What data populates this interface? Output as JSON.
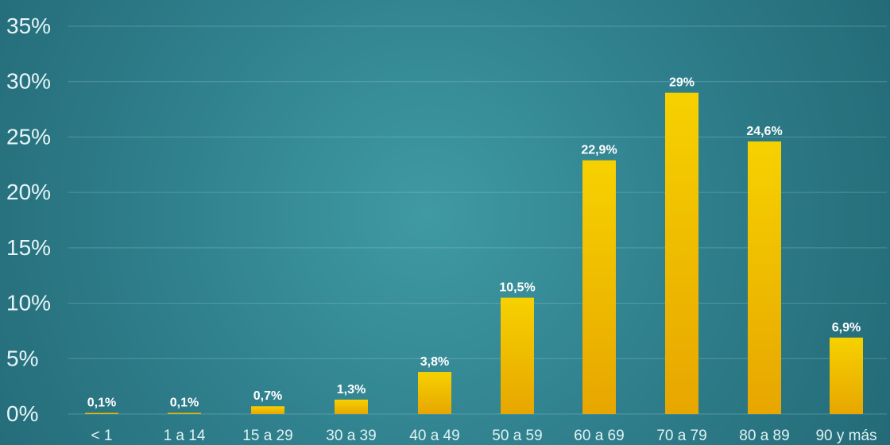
{
  "chart_data": {
    "type": "bar",
    "categories": [
      "< 1",
      "1 a 14",
      "15 a 29",
      "30 a 39",
      "40 a 49",
      "50 a 59",
      "60 a 69",
      "70 a 79",
      "80 a 89",
      "90 y más"
    ],
    "values": [
      0.1,
      0.1,
      0.7,
      1.3,
      3.8,
      10.5,
      22.9,
      29,
      24.6,
      6.9
    ],
    "data_labels": [
      "0,1%",
      "0,1%",
      "0,7%",
      "1,3%",
      "3,8%",
      "10,5%",
      "22,9%",
      "29%",
      "24,6%",
      "6,9%"
    ],
    "y_ticks": [
      0,
      5,
      10,
      15,
      20,
      25,
      30,
      35
    ],
    "y_tick_labels": [
      "0%",
      "5%",
      "10%",
      "15%",
      "20%",
      "25%",
      "30%",
      "35%"
    ],
    "ylim": [
      0,
      35
    ],
    "grid": true,
    "legend": "none",
    "colors": {
      "background_center": "#3f9aa3",
      "background_edge": "#246a77",
      "bar_top": "#f6d100",
      "bar_bottom": "#e7a600",
      "text": "#e6f5f7"
    }
  }
}
